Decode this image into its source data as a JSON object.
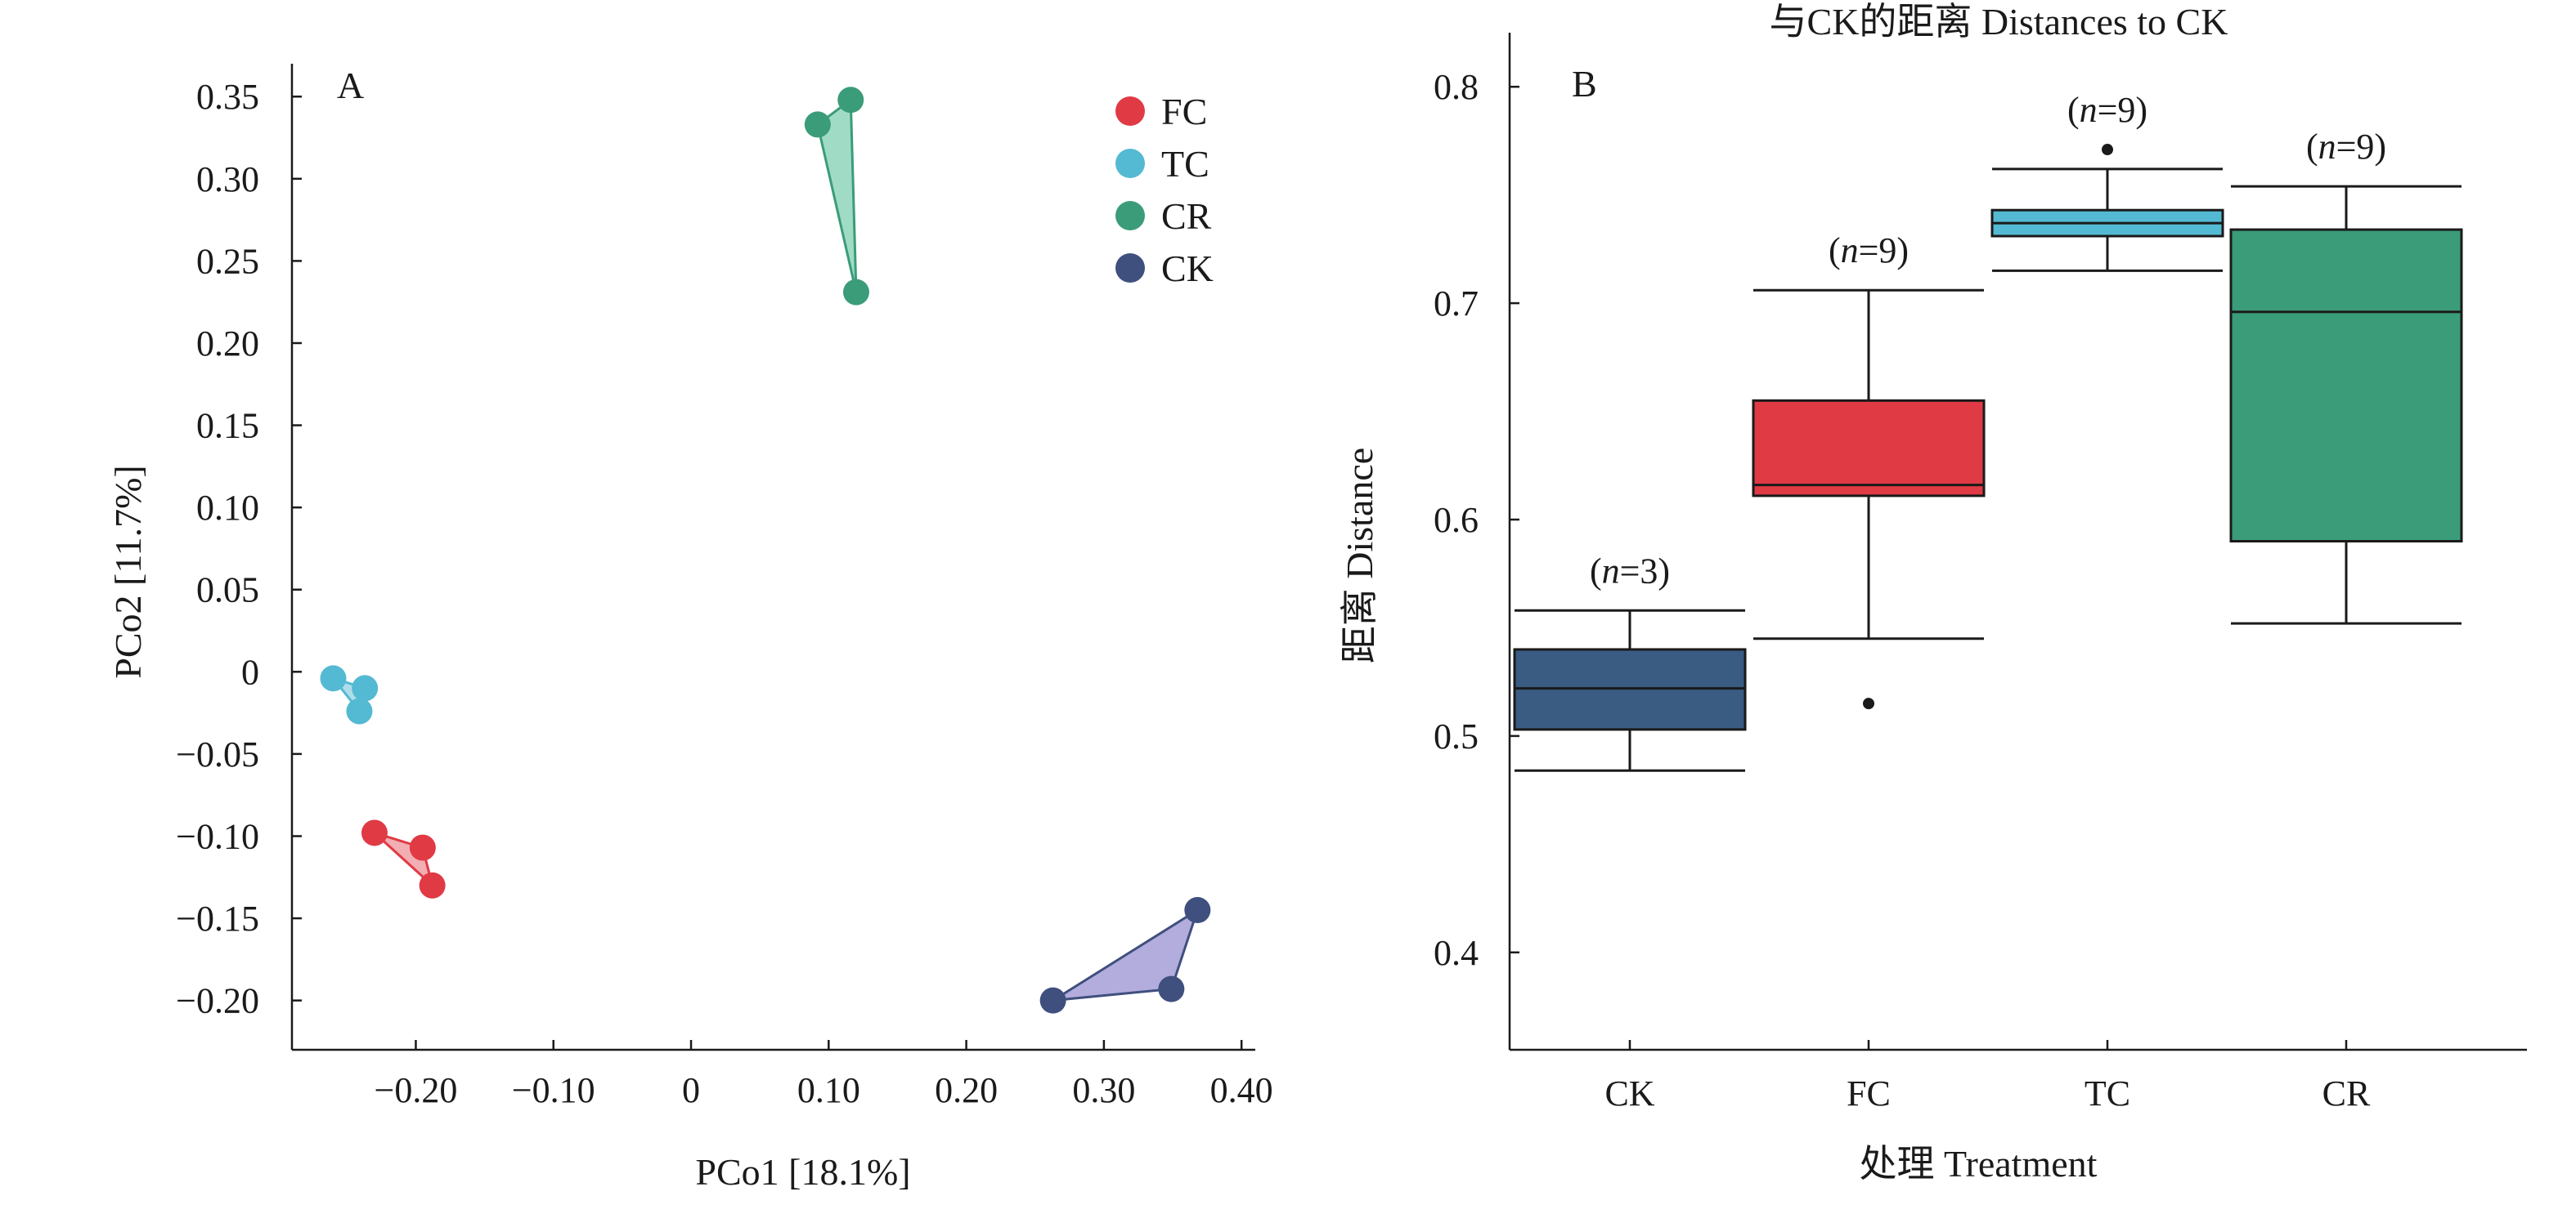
{
  "chart_data": [
    {
      "type": "scatter",
      "panel": "A",
      "xlabel": "PCo1 [18.1%]",
      "ylabel": "PCo2 [11.7%]",
      "xlim": [
        -0.29,
        0.41
      ],
      "ylim": [
        -0.23,
        0.37
      ],
      "x_ticks": [
        -0.2,
        -0.1,
        0,
        0.1,
        0.2,
        0.3,
        0.4
      ],
      "x_tick_labels": [
        "−0.20",
        "−0.10",
        "0",
        "0.10",
        "0.20",
        "0.30",
        "0.40"
      ],
      "y_ticks": [
        0.35,
        0.3,
        0.25,
        0.2,
        0.15,
        0.1,
        0.05,
        0,
        -0.05,
        -0.1,
        -0.15,
        -0.2
      ],
      "y_tick_labels": [
        "0.35",
        "0.30",
        "0.25",
        "0.20",
        "0.15",
        "0.10",
        "0.05",
        "0",
        "−0.05",
        "−0.10",
        "−0.15",
        "−0.20"
      ],
      "legend_position": "top-right",
      "grid": false,
      "series": [
        {
          "name": "FC",
          "color": "#e03a45",
          "hull_color": "#f0a0a6",
          "points": [
            [
              -0.23,
              -0.098
            ],
            [
              -0.195,
              -0.107
            ],
            [
              -0.188,
              -0.13
            ]
          ]
        },
        {
          "name": "TC",
          "color": "#54b9d2",
          "hull_color": "#9fd8e6",
          "points": [
            [
              -0.26,
              -0.004
            ],
            [
              -0.237,
              -0.01
            ],
            [
              -0.241,
              -0.024
            ]
          ]
        },
        {
          "name": "CR",
          "color": "#3b9c79",
          "hull_color": "#8fd6bb",
          "points": [
            [
              0.092,
              0.333
            ],
            [
              0.116,
              0.348
            ],
            [
              0.12,
              0.231
            ]
          ]
        },
        {
          "name": "CK",
          "color": "#3f4f7e",
          "hull_color": "#a49fd6",
          "points": [
            [
              0.263,
              -0.2
            ],
            [
              0.349,
              -0.193
            ],
            [
              0.368,
              -0.145
            ]
          ]
        }
      ]
    },
    {
      "type": "box",
      "panel": "B",
      "title": "与CK的距离 Distances to CK",
      "xlabel": "处理 Treatment",
      "ylabel": "距离 Distance",
      "ylim": [
        0.355,
        0.825
      ],
      "y_ticks": [
        0.4,
        0.5,
        0.6,
        0.7,
        0.8
      ],
      "y_tick_labels": [
        "0.4",
        "0.5",
        "0.6",
        "0.7",
        "0.8"
      ],
      "grid": false,
      "categories": [
        "CK",
        "FC",
        "TC",
        "CR"
      ],
      "boxes": [
        {
          "name": "CK",
          "n": "3",
          "n_prefix": "(",
          "n_var": "n",
          "n_suffix": "=3)",
          "color": "#3a5b82",
          "lower_whisker": 0.484,
          "q1": 0.503,
          "median": 0.522,
          "q3": 0.54,
          "upper_whisker": 0.558,
          "outliers": []
        },
        {
          "name": "FC",
          "n": "9",
          "n_prefix": "(",
          "n_var": "n",
          "n_suffix": "=9)",
          "color": "#e03a45",
          "lower_whisker": 0.545,
          "q1": 0.611,
          "median": 0.616,
          "q3": 0.655,
          "upper_whisker": 0.706,
          "outliers": [
            0.515
          ]
        },
        {
          "name": "TC",
          "n": "9",
          "n_prefix": "(",
          "n_var": "n",
          "n_suffix": "=9)",
          "color": "#54b9d2",
          "lower_whisker": 0.715,
          "q1": 0.731,
          "median": 0.737,
          "q3": 0.743,
          "upper_whisker": 0.762,
          "outliers": [
            0.771
          ]
        },
        {
          "name": "CR",
          "n": "9",
          "n_prefix": "(",
          "n_var": "n",
          "n_suffix": "=9)",
          "color": "#3b9c79",
          "lower_whisker": 0.552,
          "q1": 0.59,
          "median": 0.696,
          "q3": 0.734,
          "upper_whisker": 0.754,
          "outliers": []
        }
      ]
    }
  ]
}
